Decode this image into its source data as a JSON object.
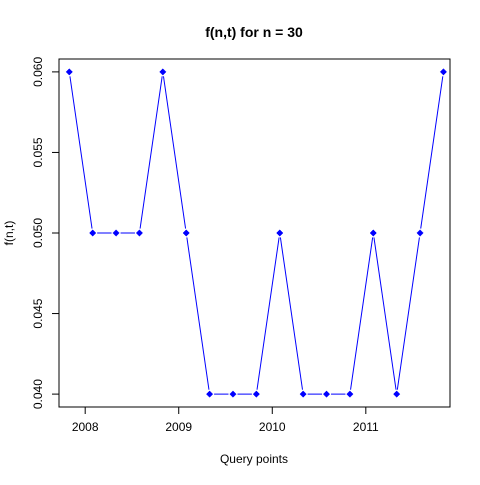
{
  "chart_data": {
    "type": "line",
    "title": "f(n,t) for n = 30",
    "xlabel": "Query points",
    "ylabel": "f(n,t)",
    "x_ticks": [
      2008,
      2009,
      2010,
      2011
    ],
    "y_ticks": [
      0.04,
      0.045,
      0.05,
      0.055,
      0.06
    ],
    "y_tick_labels": [
      "0.040",
      "0.045",
      "0.050",
      "0.055",
      "0.060"
    ],
    "xlim": [
      2007.72,
      2011.9
    ],
    "ylim": [
      0.0392,
      0.0608
    ],
    "grid": false,
    "series": [
      {
        "color": "#0000ff",
        "marker": "diamond",
        "x": [
          2007.83,
          2008.08,
          2008.33,
          2008.58,
          2008.83,
          2009.08,
          2009.33,
          2009.58,
          2009.83,
          2010.08,
          2010.33,
          2010.58,
          2010.83,
          2011.08,
          2011.33,
          2011.58,
          2011.83
        ],
        "y": [
          0.06,
          0.05,
          0.05,
          0.05,
          0.06,
          0.05,
          0.04,
          0.04,
          0.04,
          0.05,
          0.04,
          0.04,
          0.04,
          0.05,
          0.04,
          0.05,
          0.06
        ]
      }
    ]
  }
}
